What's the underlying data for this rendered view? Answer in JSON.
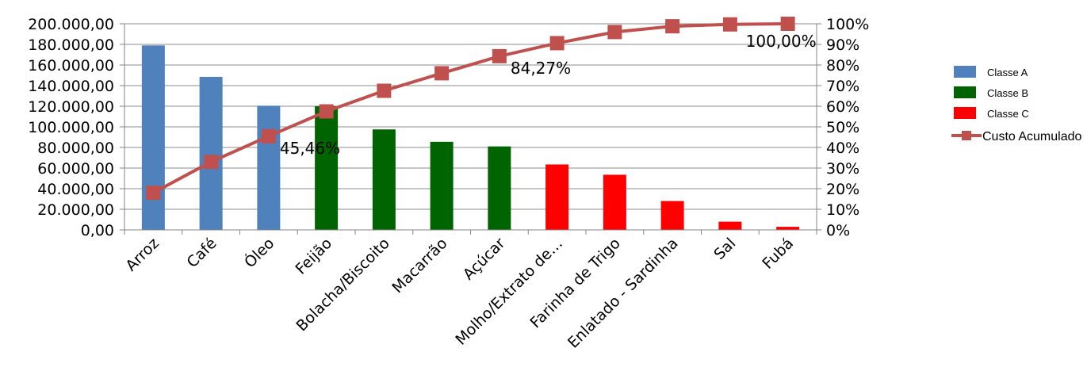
{
  "chart_data": {
    "type": "bar",
    "categories": [
      "Arroz",
      "Café",
      "Óleo",
      "Feijão",
      "Bolacha/Biscoito",
      "Macarrão",
      "Açúcar",
      "Molho/Extrato de…",
      "Farinha de Trigo",
      "Enlatado - Sardinha",
      "Sal",
      "Fubá"
    ],
    "series": [
      {
        "name": "Classe A",
        "type": "bar",
        "color": "#4F81BD",
        "values": [
          179000,
          148500,
          120500,
          null,
          null,
          null,
          null,
          null,
          null,
          null,
          null,
          null
        ]
      },
      {
        "name": "Classe B",
        "type": "bar",
        "color": "#006400",
        "values": [
          null,
          null,
          null,
          120000,
          97500,
          85500,
          81000,
          null,
          null,
          null,
          null,
          null
        ]
      },
      {
        "name": "Classe C",
        "type": "bar",
        "color": "#FF0000",
        "values": [
          null,
          null,
          null,
          null,
          null,
          null,
          null,
          63500,
          53500,
          28000,
          8000,
          3000
        ]
      },
      {
        "name": "Custo Acumulado",
        "type": "line",
        "axis": "right",
        "color": "#C0504D",
        "marker": "square",
        "values": [
          18.0,
          33.0,
          45.46,
          57.5,
          67.5,
          76.0,
          84.27,
          90.6,
          96.0,
          98.8,
          99.7,
          100.0
        ]
      }
    ],
    "y_left": {
      "ylim": [
        0,
        200000
      ],
      "ticks": [
        "0,00",
        "20.000,00",
        "40.000,00",
        "60.000,00",
        "80.000,00",
        "100.000,00",
        "120.000,00",
        "140.000,00",
        "160.000,00",
        "180.000,00",
        "200.000,00"
      ]
    },
    "y_right": {
      "ylim": [
        0,
        100
      ],
      "ticks": [
        "0%",
        "10%",
        "20%",
        "30%",
        "40%",
        "50%",
        "60%",
        "70%",
        "80%",
        "90%",
        "100%"
      ]
    },
    "data_labels": [
      {
        "category_index": 2,
        "text": "45,46%"
      },
      {
        "category_index": 6,
        "text": "84,27%"
      },
      {
        "category_index": 11,
        "text": "100,00%"
      }
    ],
    "grid": true,
    "legend": {
      "position": "right",
      "entries": [
        "Classe A",
        "Classe B",
        "Classe C",
        "Custo Acumulado"
      ]
    },
    "title": "",
    "xlabel": "",
    "ylabel": ""
  }
}
